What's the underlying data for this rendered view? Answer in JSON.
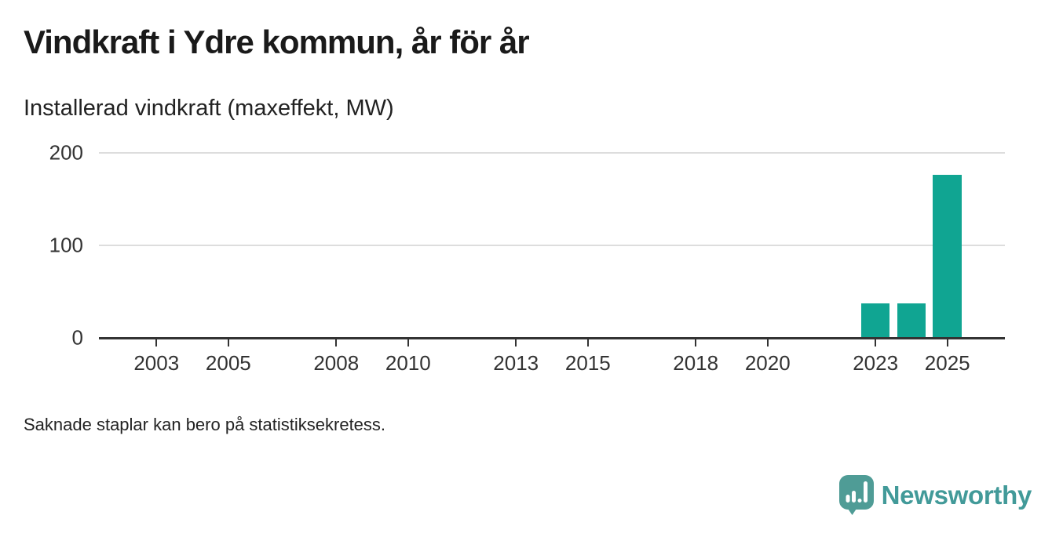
{
  "header": {
    "title": "Vindkraft i Ydre kommun, år för år",
    "subtitle": "Installerad vindkraft (maxeffekt, MW)"
  },
  "note": "Saknade staplar kan bero på statistiksekretess.",
  "branding": {
    "name": "Newsworthy",
    "logo_icon": "speech-bubble-bar-chart-icon",
    "logo_color": "#4F9C96",
    "wordmark_color": "#429A99"
  },
  "colors": {
    "bar": "#10A592",
    "gridline": "#DDDDDD",
    "axis": "#333333",
    "title_text": "#1A1A1A"
  },
  "chart_data": {
    "type": "bar",
    "title": "Vindkraft i Ydre kommun, år för år",
    "subtitle": "Installerad vindkraft (maxeffekt, MW)",
    "xlabel": "",
    "ylabel": "Installerad vindkraft (maxeffekt, MW)",
    "unit": "MW",
    "ylim": [
      0,
      200
    ],
    "y_ticks": [
      0,
      100,
      200
    ],
    "x_domain": [
      2001.4,
      2026.6
    ],
    "x_tick_years": [
      2003,
      2005,
      2008,
      2010,
      2013,
      2015,
      2018,
      2020,
      2023,
      2025
    ],
    "bar_width_years": 0.8,
    "points": [
      {
        "year": 2023,
        "value": 37
      },
      {
        "year": 2024,
        "value": 37
      },
      {
        "year": 2025,
        "value": 176
      }
    ],
    "grid": "horizontal",
    "legend": "none",
    "note": "Saknade staplar kan bero på statistiksekretess."
  }
}
